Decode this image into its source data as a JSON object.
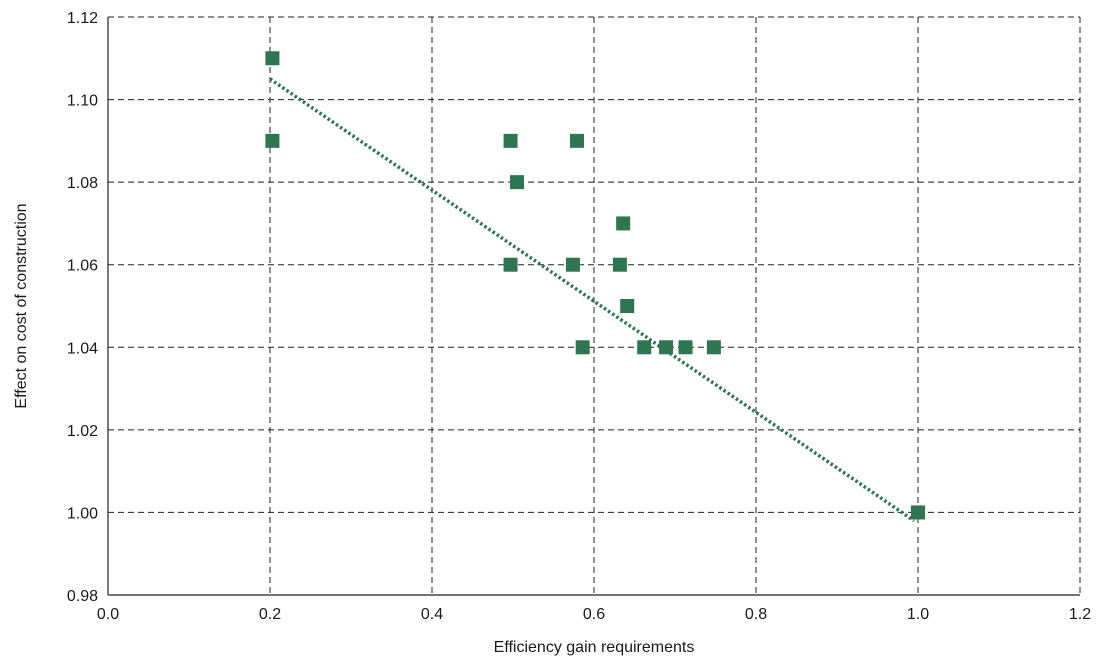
{
  "chart_data": {
    "type": "scatter",
    "xlabel": "Efficiency gain requirements",
    "ylabel": "Effect on cost of construction",
    "xlim": [
      0.0,
      1.2
    ],
    "ylim": [
      0.98,
      1.12
    ],
    "x_ticks": [
      0.0,
      0.2,
      0.4,
      0.6,
      0.8,
      1.0,
      1.2
    ],
    "y_ticks": [
      0.98,
      1.0,
      1.02,
      1.04,
      1.06,
      1.08,
      1.1,
      1.12
    ],
    "x_tick_labels": [
      "0.0",
      "0.2",
      "0.4",
      "0.6",
      "0.8",
      "1.0",
      "1.2"
    ],
    "y_tick_labels": [
      "0.98",
      "1.00",
      "1.02",
      "1.04",
      "1.06",
      "1.08",
      "1.10",
      "1.12"
    ],
    "grid": true,
    "marker_color": "#2e7552",
    "trendline_color": "#2e7552",
    "points": [
      {
        "x": 0.203,
        "y": 1.11
      },
      {
        "x": 0.203,
        "y": 1.09
      },
      {
        "x": 0.497,
        "y": 1.09
      },
      {
        "x": 0.497,
        "y": 1.06
      },
      {
        "x": 0.505,
        "y": 1.08
      },
      {
        "x": 0.579,
        "y": 1.09
      },
      {
        "x": 0.574,
        "y": 1.06
      },
      {
        "x": 0.586,
        "y": 1.04
      },
      {
        "x": 0.632,
        "y": 1.06
      },
      {
        "x": 0.636,
        "y": 1.07
      },
      {
        "x": 0.641,
        "y": 1.05
      },
      {
        "x": 0.662,
        "y": 1.04
      },
      {
        "x": 0.689,
        "y": 1.04
      },
      {
        "x": 0.713,
        "y": 1.04
      },
      {
        "x": 0.748,
        "y": 1.04
      },
      {
        "x": 1.0,
        "y": 1.0
      }
    ],
    "trendline": {
      "style": "dotted",
      "x": [
        0.2,
        0.995
      ],
      "y": [
        1.105,
        0.998
      ]
    }
  }
}
